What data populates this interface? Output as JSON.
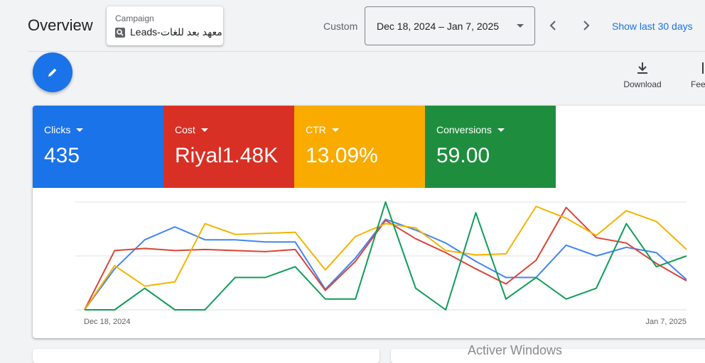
{
  "header": {
    "title": "Overview",
    "campaign_caption": "Campaign",
    "campaign_name": "Leads-معهد بعد للغات",
    "range_label": "Custom",
    "date_range": "Dec 18, 2024 – Jan 7, 2025",
    "show_last_label": "Show last 30 days"
  },
  "toolbar": {
    "download_label": "Download",
    "feedback_label": "Fee"
  },
  "metrics": [
    {
      "label": "Clicks",
      "value": "435",
      "color": "#1a73e8"
    },
    {
      "label": "Cost",
      "value": "Riyal1.48K",
      "color": "#d93025"
    },
    {
      "label": "CTR",
      "value": "13.09%",
      "color": "#f9ab00"
    },
    {
      "label": "Conversions",
      "value": "59.00",
      "color": "#1e8e3e"
    }
  ],
  "chart_data": {
    "type": "line",
    "x_start_label": "Dec 18, 2024",
    "x_end_label": "Jan 7, 2025",
    "normalized_y": true,
    "ylim": [
      0,
      1
    ],
    "grid": true,
    "series": [
      {
        "name": "Clicks",
        "color": "#4285f4",
        "values": [
          0,
          0.38,
          0.65,
          0.77,
          0.65,
          0.65,
          0.63,
          0.63,
          0.19,
          0.48,
          0.84,
          0.74,
          0.62,
          0.45,
          0.3,
          0.3,
          0.6,
          0.5,
          0.58,
          0.53,
          0.28
        ]
      },
      {
        "name": "Cost",
        "color": "#db4437",
        "values": [
          0,
          0.55,
          0.57,
          0.55,
          0.56,
          0.55,
          0.54,
          0.56,
          0.18,
          0.45,
          0.83,
          0.66,
          0.53,
          0.38,
          0.24,
          0.46,
          0.95,
          0.67,
          0.62,
          0.43,
          0.27
        ]
      },
      {
        "name": "CTR",
        "color": "#f4b400",
        "values": [
          0,
          0.41,
          0.22,
          0.26,
          0.8,
          0.7,
          0.71,
          0.72,
          0.37,
          0.68,
          0.8,
          0.76,
          0.55,
          0.51,
          0.52,
          0.96,
          0.85,
          0.69,
          0.92,
          0.82,
          0.56
        ]
      },
      {
        "name": "Conversions",
        "color": "#0f9d58",
        "values": [
          0,
          0,
          0.2,
          0,
          0,
          0.3,
          0.3,
          0.4,
          0.1,
          0.1,
          1.0,
          0.2,
          0,
          0.9,
          0.1,
          0.3,
          0.1,
          0.2,
          0.8,
          0.4,
          0.5
        ]
      }
    ]
  },
  "overlay": {
    "activate_windows": "Activer Windows"
  }
}
